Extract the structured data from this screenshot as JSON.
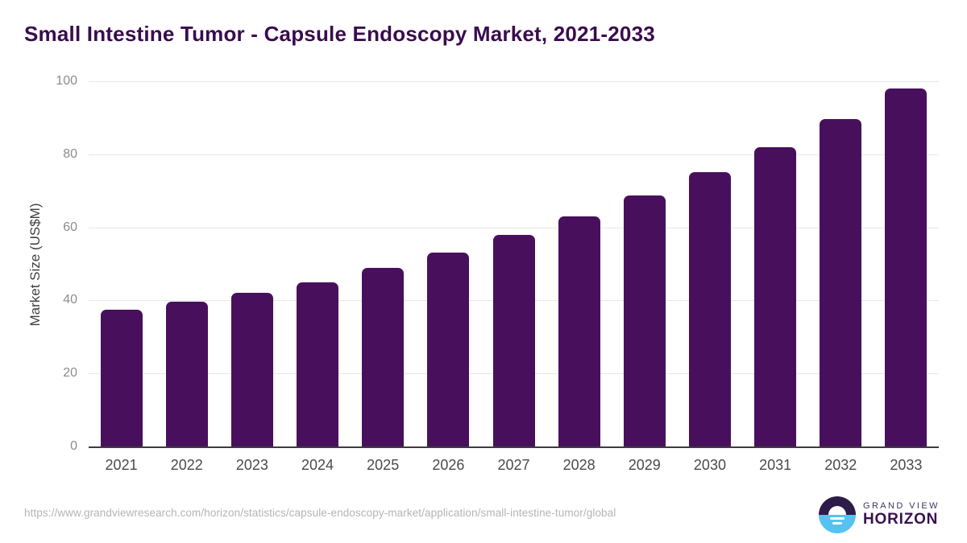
{
  "header": {
    "title": "Small Intestine Tumor - Capsule Endoscopy Market, 2021-2033"
  },
  "chart_data": {
    "type": "bar",
    "title": "Small Intestine Tumor - Capsule Endoscopy Market, 2021-2033",
    "categories": [
      "2021",
      "2022",
      "2023",
      "2024",
      "2025",
      "2026",
      "2027",
      "2028",
      "2029",
      "2030",
      "2031",
      "2032",
      "2033"
    ],
    "values": [
      37.4,
      39.6,
      42.1,
      45.0,
      48.8,
      53.0,
      57.9,
      62.9,
      68.8,
      75.2,
      81.9,
      89.6,
      98.0
    ],
    "xlabel": "",
    "ylabel": "Market Size (US$M)",
    "ylim": [
      0,
      100
    ],
    "yticks": [
      0,
      20,
      40,
      60,
      80,
      100
    ],
    "grid": "horizontal",
    "legend": "none",
    "bar_color": "#48105C"
  },
  "footer": {
    "source_url": "https://www.grandviewresearch.com/horizon/statistics/capsule-endoscopy-market/application/small-intestine-tumor/global",
    "logo": {
      "line1": "GRAND VIEW",
      "line2": "HORIZON"
    }
  },
  "colors": {
    "title": "#3A0C4E",
    "bar": "#48105C",
    "gridline": "#E7E7E7",
    "axis_baseline": "#3D3D3D",
    "y_tick_text": "#8C8C8C",
    "x_tick_text": "#4A4A4A",
    "y_axis_title_text": "#3F3F3F",
    "footer_url_text": "#B4B4B4",
    "logo_navy": "#2D1B49",
    "logo_blue": "#55C3F2"
  }
}
